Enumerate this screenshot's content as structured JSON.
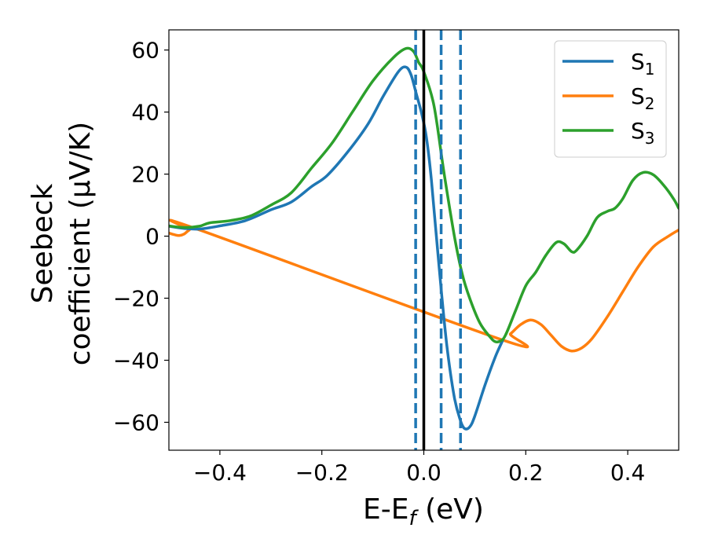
{
  "chart_data": {
    "type": "line",
    "xlabel": {
      "main": "E-E",
      "sub": "f",
      "unit": " (eV)"
    },
    "ylabel": {
      "line1": "Seebeck",
      "line2": "coefficient  (μV/K)"
    },
    "xlim": [
      -0.5,
      0.5
    ],
    "ylim": [
      -69,
      66.5
    ],
    "xticks": [
      -0.4,
      -0.2,
      0.0,
      0.2,
      0.4
    ],
    "xtick_labels": [
      "−0.4",
      "−0.2",
      "0.0",
      "0.2",
      "0.4"
    ],
    "yticks": [
      -60,
      -40,
      -20,
      0,
      20,
      40,
      60
    ],
    "ytick_labels": [
      "−60",
      "−40",
      "−20",
      "0",
      "20",
      "40",
      "60"
    ],
    "grid": false,
    "legend_position": "top-right",
    "vlines": [
      {
        "x": 0.0,
        "style": "solid",
        "color": "#000000"
      },
      {
        "x": -0.016,
        "style": "dashed",
        "color": "#1f77b4"
      },
      {
        "x": 0.034,
        "style": "dashed",
        "color": "#1f77b4"
      },
      {
        "x": 0.072,
        "style": "dashed",
        "color": "#1f77b4"
      }
    ],
    "series": [
      {
        "name": "S",
        "sub": "1",
        "color": "#1f77b4",
        "points": [
          [
            -0.5,
            3.2
          ],
          [
            -0.47,
            2.5
          ],
          [
            -0.44,
            2.3
          ],
          [
            -0.4,
            3.3
          ],
          [
            -0.35,
            5.0
          ],
          [
            -0.3,
            8.5
          ],
          [
            -0.26,
            11.0
          ],
          [
            -0.22,
            16.0
          ],
          [
            -0.19,
            19.5
          ],
          [
            -0.15,
            27.0
          ],
          [
            -0.11,
            36.0
          ],
          [
            -0.08,
            45.0
          ],
          [
            -0.05,
            53.0
          ],
          [
            -0.035,
            54.5
          ],
          [
            -0.025,
            52.0
          ],
          [
            -0.015,
            46.0
          ],
          [
            -0.005,
            40.0
          ],
          [
            0.005,
            32.0
          ],
          [
            0.015,
            18.0
          ],
          [
            0.03,
            -10.0
          ],
          [
            0.045,
            -35.0
          ],
          [
            0.06,
            -52.0
          ],
          [
            0.072,
            -59.5
          ],
          [
            0.08,
            -62.0
          ],
          [
            0.09,
            -61.5
          ],
          [
            0.1,
            -58.0
          ],
          [
            0.12,
            -48.0
          ],
          [
            0.14,
            -39.0
          ],
          [
            0.155,
            -33.5
          ]
        ]
      },
      {
        "name": "S",
        "sub": "2",
        "color": "#ff7f0e",
        "points": [
          [
            -0.5,
            1.0
          ],
          [
            -0.49,
            0.5
          ],
          [
            -0.48,
            0.2
          ],
          [
            -0.47,
            0.7
          ],
          [
            -0.46,
            2.0
          ],
          [
            -0.45,
            2.6
          ],
          [
            0.155,
            -33.5
          ],
          [
            0.17,
            -31.5
          ],
          [
            0.19,
            -28.5
          ],
          [
            0.21,
            -27.0
          ],
          [
            0.23,
            -28.5
          ],
          [
            0.25,
            -32.0
          ],
          [
            0.27,
            -35.5
          ],
          [
            0.29,
            -37.0
          ],
          [
            0.31,
            -36.0
          ],
          [
            0.33,
            -33.0
          ],
          [
            0.36,
            -26.0
          ],
          [
            0.39,
            -18.0
          ],
          [
            0.42,
            -10.0
          ],
          [
            0.45,
            -3.5
          ],
          [
            0.48,
            0.0
          ],
          [
            0.5,
            2.0
          ]
        ]
      },
      {
        "name": "S",
        "sub": "3",
        "color": "#2ca02c",
        "points": [
          [
            -0.5,
            3.3
          ],
          [
            -0.47,
            2.8
          ],
          [
            -0.44,
            3.2
          ],
          [
            -0.42,
            4.3
          ],
          [
            -0.38,
            5.0
          ],
          [
            -0.34,
            6.5
          ],
          [
            -0.3,
            10.0
          ],
          [
            -0.26,
            14.0
          ],
          [
            -0.22,
            22.0
          ],
          [
            -0.18,
            30.0
          ],
          [
            -0.14,
            40.0
          ],
          [
            -0.1,
            50.0
          ],
          [
            -0.06,
            57.5
          ],
          [
            -0.035,
            60.5
          ],
          [
            -0.02,
            59.5
          ],
          [
            -0.01,
            56.0
          ],
          [
            0.0,
            53.0
          ],
          [
            0.02,
            42.0
          ],
          [
            0.04,
            20.0
          ],
          [
            0.06,
            0.0
          ],
          [
            0.075,
            -12.0
          ],
          [
            0.09,
            -20.0
          ],
          [
            0.11,
            -28.0
          ],
          [
            0.13,
            -32.5
          ],
          [
            0.14,
            -34.0
          ],
          [
            0.15,
            -33.8
          ],
          [
            0.16,
            -32.0
          ],
          [
            0.18,
            -24.0
          ],
          [
            0.2,
            -16.0
          ],
          [
            0.22,
            -11.5
          ],
          [
            0.24,
            -6.0
          ],
          [
            0.26,
            -2.0
          ],
          [
            0.275,
            -2.5
          ],
          [
            0.29,
            -5.0
          ],
          [
            0.3,
            -4.5
          ],
          [
            0.32,
            0.0
          ],
          [
            0.34,
            6.0
          ],
          [
            0.36,
            8.0
          ],
          [
            0.375,
            9.0
          ],
          [
            0.39,
            12.0
          ],
          [
            0.41,
            18.0
          ],
          [
            0.43,
            20.5
          ],
          [
            0.45,
            19.8
          ],
          [
            0.47,
            16.5
          ],
          [
            0.49,
            12.0
          ],
          [
            0.5,
            9.0
          ]
        ]
      }
    ]
  }
}
